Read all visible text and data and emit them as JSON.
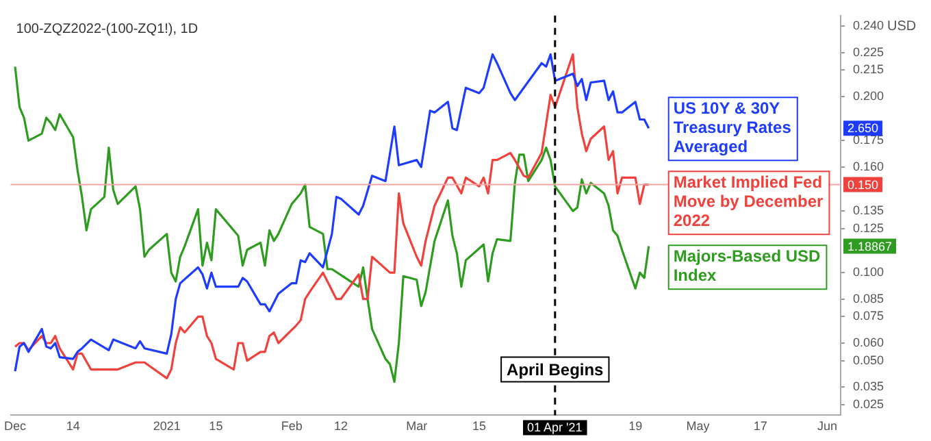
{
  "chart_data": {
    "type": "line",
    "title": "100-ZQZ2022-(100-ZQ1!), 1D",
    "ylabel": "USD",
    "legend": "right",
    "line_style": "solid",
    "marker": "none",
    "xlim": [
      "2020-11-30",
      "2021-06-04"
    ],
    "xticks": [
      {
        "value": "2020-12-01",
        "label": "Dec"
      },
      {
        "value": "2020-12-14",
        "label": "14"
      },
      {
        "value": "2021-01-04",
        "label": "2021"
      },
      {
        "value": "2021-01-15",
        "label": "15"
      },
      {
        "value": "2021-02-01",
        "label": "Feb"
      },
      {
        "value": "2021-02-12",
        "label": "12"
      },
      {
        "value": "2021-03-01",
        "label": "Mar"
      },
      {
        "value": "2021-03-15",
        "label": "15"
      },
      {
        "value": "2021-04-19",
        "label": "19"
      },
      {
        "value": "2021-05-03",
        "label": "May"
      },
      {
        "value": "2021-05-17",
        "label": "17"
      },
      {
        "value": "2021-06-01",
        "label": "Jun"
      }
    ],
    "ylim": [
      0.019,
      0.246
    ],
    "yticks": [
      {
        "value": 0.025,
        "label": "0.025"
      },
      {
        "value": 0.035,
        "label": "0.035"
      },
      {
        "value": 0.05,
        "label": "0.050"
      },
      {
        "value": 0.06,
        "label": "0.060"
      },
      {
        "value": 0.075,
        "label": "0.075"
      },
      {
        "value": 0.085,
        "label": "0.085"
      },
      {
        "value": 0.1,
        "label": "0.100"
      },
      {
        "value": 0.125,
        "label": "0.125"
      },
      {
        "value": 0.135,
        "label": "0.135"
      },
      {
        "value": 0.16,
        "label": "0.160"
      },
      {
        "value": 0.175,
        "label": "0.175"
      },
      {
        "value": 0.2,
        "label": "0.200"
      },
      {
        "value": 0.215,
        "label": "0.215"
      },
      {
        "value": 0.225,
        "label": "0.225"
      },
      {
        "value": 0.24,
        "label": "0.240"
      }
    ],
    "ref_lines": [
      {
        "axis": "x",
        "value": "2021-04-01",
        "label": "01 Apr '21",
        "color": "#000000",
        "line_style": "dashed"
      },
      {
        "axis": "y",
        "value": 0.15,
        "color": "#f6a5a3",
        "line_style": "solid"
      }
    ],
    "annotations": [
      {
        "text": "April Begins",
        "x": "2021-04-01",
        "y": 0.045
      },
      "2.650",
      "0.150",
      "1.18867"
    ],
    "series": [
      {
        "name": "US 10Y & 30Y Treasury Rates Averaged",
        "color": "#1e3cff",
        "x": [
          "2020-12-01",
          "2020-12-02",
          "2020-12-03",
          "2020-12-04",
          "2020-12-07",
          "2020-12-08",
          "2020-12-09",
          "2020-12-10",
          "2020-12-11",
          "2020-12-14",
          "2020-12-15",
          "2020-12-16",
          "2020-12-18",
          "2020-12-22",
          "2020-12-23",
          "2020-12-28",
          "2020-12-29",
          "2020-12-30",
          "2021-01-04",
          "2021-01-05",
          "2021-01-06",
          "2021-01-07",
          "2021-01-11",
          "2021-01-12",
          "2021-01-13",
          "2021-01-14",
          "2021-01-15",
          "2021-01-20",
          "2021-01-21",
          "2021-01-22",
          "2021-01-25",
          "2021-01-26",
          "2021-01-27",
          "2021-01-29",
          "2021-02-01",
          "2021-02-02",
          "2021-02-03",
          "2021-02-04",
          "2021-02-05",
          "2021-02-08",
          "2021-02-10",
          "2021-02-11",
          "2021-02-12",
          "2021-02-16",
          "2021-02-17",
          "2021-02-19",
          "2021-02-22",
          "2021-02-24",
          "2021-02-25",
          "2021-03-01",
          "2021-03-02",
          "2021-03-04",
          "2021-03-05",
          "2021-03-08",
          "2021-03-09",
          "2021-03-10",
          "2021-03-12",
          "2021-03-15",
          "2021-03-16",
          "2021-03-18",
          "2021-03-19",
          "2021-03-22",
          "2021-03-23",
          "2021-03-29",
          "2021-03-30",
          "2021-03-31",
          "2021-04-01",
          "2021-04-05",
          "2021-04-06",
          "2021-04-07",
          "2021-04-08",
          "2021-04-09",
          "2021-04-12",
          "2021-04-13",
          "2021-04-14",
          "2021-04-15",
          "2021-04-16",
          "2021-04-19",
          "2021-04-20",
          "2021-04-21",
          "2021-04-22"
        ],
        "values": [
          0.044,
          0.058,
          0.06,
          0.055,
          0.068,
          0.058,
          0.057,
          0.06,
          0.052,
          0.051,
          0.055,
          0.057,
          0.062,
          0.056,
          0.062,
          0.057,
          0.061,
          0.057,
          0.054,
          0.065,
          0.085,
          0.094,
          0.103,
          0.099,
          0.091,
          0.1,
          0.092,
          0.092,
          0.097,
          0.095,
          0.082,
          0.082,
          0.078,
          0.088,
          0.094,
          0.094,
          0.107,
          0.106,
          0.111,
          0.103,
          0.122,
          0.143,
          0.142,
          0.133,
          0.138,
          0.155,
          0.152,
          0.183,
          0.161,
          0.164,
          0.16,
          0.192,
          0.191,
          0.197,
          0.182,
          0.181,
          0.205,
          0.202,
          0.205,
          0.224,
          0.219,
          0.202,
          0.198,
          0.219,
          0.217,
          0.224,
          0.209,
          0.213,
          0.206,
          0.21,
          0.198,
          0.208,
          0.209,
          0.198,
          0.203,
          0.191,
          0.191,
          0.197,
          0.187,
          0.187,
          0.182
        ]
      },
      {
        "name": "Market Implied Fed Move by December 2022",
        "color": "#f0413c",
        "x": [
          "2020-12-01",
          "2020-12-02",
          "2020-12-03",
          "2020-12-04",
          "2020-12-07",
          "2020-12-08",
          "2020-12-09",
          "2020-12-10",
          "2020-12-11",
          "2020-12-14",
          "2020-12-15",
          "2020-12-16",
          "2020-12-18",
          "2020-12-22",
          "2020-12-24",
          "2020-12-28",
          "2020-12-30",
          "2021-01-04",
          "2021-01-05",
          "2021-01-06",
          "2021-01-07",
          "2021-01-08",
          "2021-01-11",
          "2021-01-12",
          "2021-01-13",
          "2021-01-14",
          "2021-01-15",
          "2021-01-19",
          "2021-01-20",
          "2021-01-21",
          "2021-01-22",
          "2021-01-25",
          "2021-01-26",
          "2021-01-27",
          "2021-01-28",
          "2021-01-29",
          "2021-02-02",
          "2021-02-03",
          "2021-02-04",
          "2021-02-05",
          "2021-02-08",
          "2021-02-11",
          "2021-02-12",
          "2021-02-16",
          "2021-02-17",
          "2021-02-18",
          "2021-02-19",
          "2021-02-23",
          "2021-02-24",
          "2021-02-25",
          "2021-02-26",
          "2021-03-01",
          "2021-03-02",
          "2021-03-03",
          "2021-03-05",
          "2021-03-08",
          "2021-03-09",
          "2021-03-11",
          "2021-03-12",
          "2021-03-15",
          "2021-03-16",
          "2021-03-17",
          "2021-03-18",
          "2021-03-19",
          "2021-03-22",
          "2021-03-23",
          "2021-03-25",
          "2021-03-26",
          "2021-03-29",
          "2021-03-31",
          "2021-04-01",
          "2021-04-05",
          "2021-04-06",
          "2021-04-07",
          "2021-04-08",
          "2021-04-09",
          "2021-04-12",
          "2021-04-13",
          "2021-04-14",
          "2021-04-15",
          "2021-04-16",
          "2021-04-19",
          "2021-04-20",
          "2021-04-21",
          "2021-04-22"
        ],
        "values": [
          0.058,
          0.06,
          0.06,
          0.056,
          0.064,
          0.06,
          0.06,
          0.064,
          0.057,
          0.045,
          0.054,
          0.054,
          0.045,
          0.045,
          0.045,
          0.049,
          0.049,
          0.04,
          0.045,
          0.06,
          0.069,
          0.066,
          0.075,
          0.075,
          0.064,
          0.06,
          0.051,
          0.045,
          0.06,
          0.06,
          0.05,
          0.055,
          0.055,
          0.064,
          0.066,
          0.06,
          0.07,
          0.073,
          0.085,
          0.089,
          0.1,
          0.085,
          0.085,
          0.099,
          0.085,
          0.085,
          0.109,
          0.1,
          0.1,
          0.145,
          0.128,
          0.109,
          0.104,
          0.118,
          0.138,
          0.154,
          0.154,
          0.145,
          0.154,
          0.149,
          0.154,
          0.145,
          0.164,
          0.164,
          0.168,
          0.164,
          0.155,
          0.154,
          0.168,
          0.201,
          0.194,
          0.224,
          0.194,
          0.179,
          0.169,
          0.176,
          0.183,
          0.164,
          0.169,
          0.145,
          0.154,
          0.154,
          0.139,
          0.15,
          0.15
        ]
      },
      {
        "name": "Majors-Based USD Index",
        "color": "#2e9c1e",
        "x": [
          "2020-12-01",
          "2020-12-02",
          "2020-12-03",
          "2020-12-04",
          "2020-12-07",
          "2020-12-08",
          "2020-12-09",
          "2020-12-10",
          "2020-12-11",
          "2020-12-14",
          "2020-12-15",
          "2020-12-16",
          "2020-12-17",
          "2020-12-18",
          "2020-12-21",
          "2020-12-22",
          "2020-12-23",
          "2020-12-24",
          "2020-12-28",
          "2020-12-29",
          "2020-12-30",
          "2020-12-31",
          "2021-01-04",
          "2021-01-05",
          "2021-01-06",
          "2021-01-07",
          "2021-01-08",
          "2021-01-11",
          "2021-01-12",
          "2021-01-13",
          "2021-01-14",
          "2021-01-15",
          "2021-01-19",
          "2021-01-20",
          "2021-01-21",
          "2021-01-22",
          "2021-01-25",
          "2021-01-26",
          "2021-01-27",
          "2021-01-28",
          "2021-01-29",
          "2021-02-01",
          "2021-02-02",
          "2021-02-03",
          "2021-02-04",
          "2021-02-05",
          "2021-02-08",
          "2021-02-09",
          "2021-02-10",
          "2021-02-16",
          "2021-02-17",
          "2021-02-18",
          "2021-02-19",
          "2021-02-22",
          "2021-02-23",
          "2021-02-24",
          "2021-02-25",
          "2021-02-26",
          "2021-03-01",
          "2021-03-02",
          "2021-03-03",
          "2021-03-05",
          "2021-03-08",
          "2021-03-09",
          "2021-03-10",
          "2021-03-11",
          "2021-03-12",
          "2021-03-16",
          "2021-03-17",
          "2021-03-18",
          "2021-03-19",
          "2021-03-22",
          "2021-03-23",
          "2021-03-24",
          "2021-03-25",
          "2021-03-26",
          "2021-03-29",
          "2021-03-30",
          "2021-03-31",
          "2021-04-01",
          "2021-04-05",
          "2021-04-06",
          "2021-04-07",
          "2021-04-08",
          "2021-04-09",
          "2021-04-12",
          "2021-04-13",
          "2021-04-14",
          "2021-04-15",
          "2021-04-16",
          "2021-04-19",
          "2021-04-20",
          "2021-04-21",
          "2021-04-22"
        ],
        "values": [
          0.217,
          0.194,
          0.188,
          0.175,
          0.179,
          0.188,
          0.185,
          0.181,
          0.19,
          0.177,
          0.158,
          0.143,
          0.124,
          0.136,
          0.143,
          0.171,
          0.147,
          0.139,
          0.149,
          0.136,
          0.109,
          0.113,
          0.122,
          0.1,
          0.095,
          0.109,
          0.115,
          0.136,
          0.104,
          0.117,
          0.107,
          0.136,
          0.124,
          0.121,
          0.104,
          0.113,
          0.117,
          0.104,
          0.124,
          0.118,
          0.122,
          0.139,
          0.142,
          0.145,
          0.15,
          0.126,
          0.122,
          0.102,
          0.102,
          0.092,
          0.103,
          0.085,
          0.068,
          0.051,
          0.048,
          0.038,
          0.06,
          0.098,
          0.096,
          0.081,
          0.089,
          0.118,
          0.141,
          0.121,
          0.111,
          0.092,
          0.107,
          0.116,
          0.095,
          0.111,
          0.119,
          0.118,
          0.151,
          0.167,
          0.167,
          0.152,
          0.164,
          0.171,
          0.164,
          0.149,
          0.135,
          0.137,
          0.153,
          0.145,
          0.151,
          0.145,
          0.138,
          0.124,
          0.121,
          0.113,
          0.091,
          0.1,
          0.097,
          0.115
        ]
      }
    ]
  }
}
